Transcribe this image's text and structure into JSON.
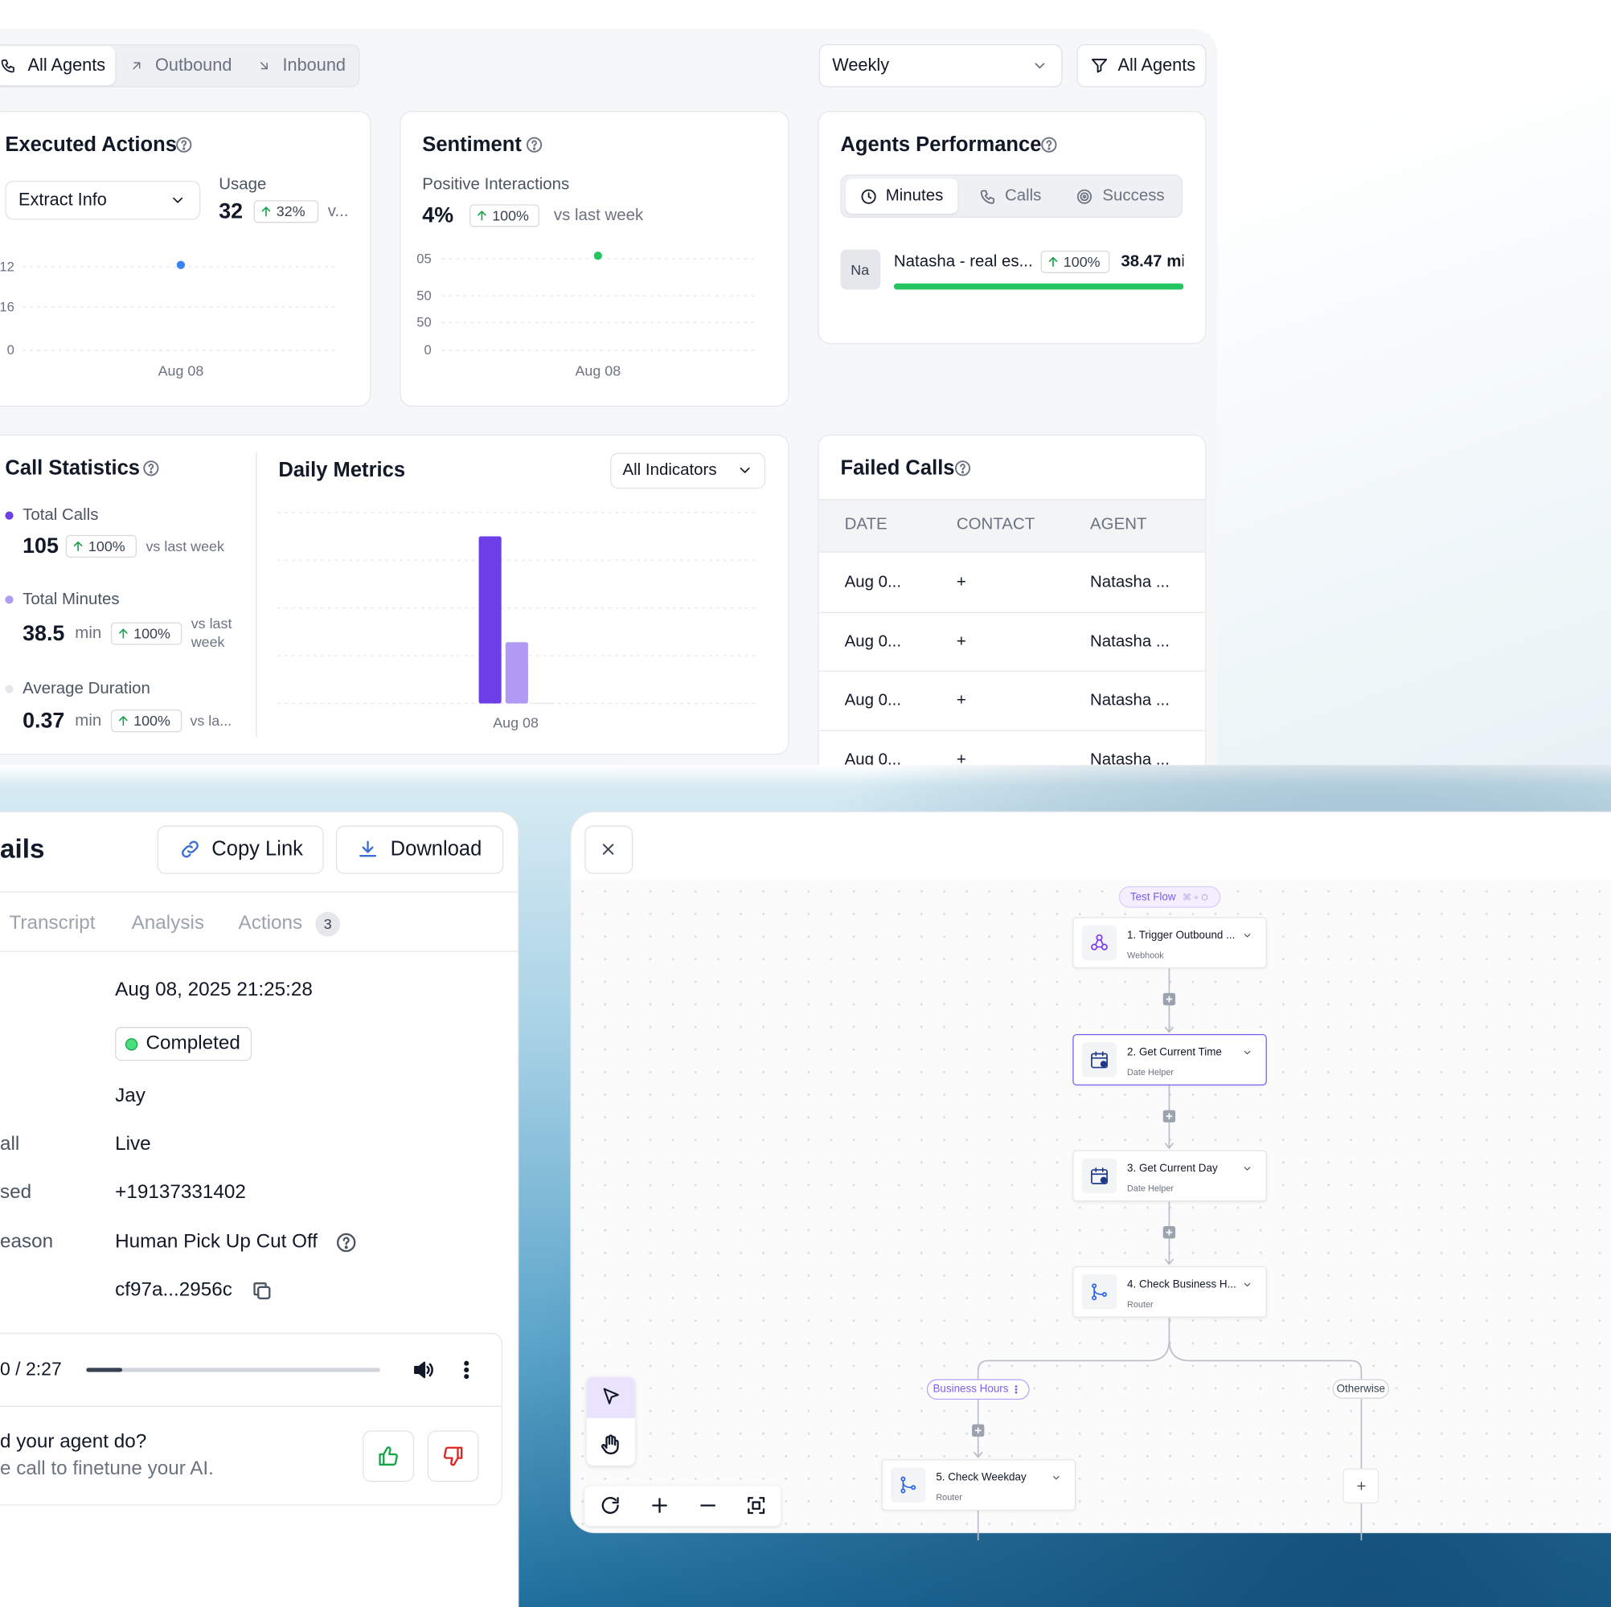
{
  "dashboard": {
    "tabs": [
      "All Agents",
      "Outbound",
      "Inbound"
    ],
    "period": "Weekly",
    "filter": "All Agents",
    "executed_actions": {
      "title": "Executed Actions",
      "select": "Extract Info",
      "usage_label": "Usage",
      "usage_value": 32,
      "change": "32%",
      "compare": "v...",
      "y_labels": [
        "12",
        "16",
        "0"
      ],
      "x_label": "Aug 08",
      "dot_color": "#3b82f6"
    },
    "sentiment": {
      "title": "Sentiment",
      "subtitle": "Positive Interactions",
      "value": "4%",
      "change": "100%",
      "compare": "vs last week",
      "y_labels": [
        "05",
        "50",
        "50",
        "0"
      ],
      "x_label": "Aug 08",
      "dot_color": "#22c55e"
    },
    "agents_performance": {
      "title": "Agents Performance",
      "tabs": [
        "Minutes",
        "Calls",
        "Success"
      ],
      "agent_initials": "Na",
      "agent_name": "Natasha - real es...",
      "agent_change": "100%",
      "agent_value": "38.47 mi",
      "bar_color": "#22c55e"
    },
    "call_statistics": {
      "title": "Call Statistics",
      "items": [
        {
          "label": "Total Calls",
          "value": 105,
          "change": "100%",
          "compare": "vs last week",
          "color": "#6d3fe8"
        },
        {
          "label": "Total Minutes",
          "value": 38.5,
          "unit": "min",
          "change": "100%",
          "compare": "vs last week",
          "color": "#b09af4"
        },
        {
          "label": "Average Duration",
          "value": 0.37,
          "unit": "min",
          "change": "100%",
          "compare": "vs la...",
          "color": "#e5e7eb"
        }
      ]
    },
    "daily_metrics": {
      "title": "Daily Metrics",
      "select": "All Indicators",
      "x_label": "Aug 08",
      "ylim": [
        0,
        120
      ],
      "grid": true
    },
    "failed_calls": {
      "title": "Failed Calls",
      "columns": [
        "DATE",
        "CONTACT",
        "AGENT"
      ],
      "rows": [
        [
          "Aug 0...",
          "+",
          "Natasha ..."
        ],
        [
          "Aug 0...",
          "+",
          "Natasha ..."
        ],
        [
          "Aug 0...",
          "+",
          "Natasha ..."
        ],
        [
          "Aug 0...",
          "+",
          "Natasha ..."
        ]
      ]
    }
  },
  "call_details": {
    "title": "ails",
    "copy_link": "Copy Link",
    "download": "Download",
    "tabs": [
      "Transcript",
      "Analysis",
      "Actions"
    ],
    "actions_count": 3,
    "fields": [
      {
        "value": "Aug 08, 2025 21:25:28"
      },
      {
        "value": "Completed"
      },
      {
        "value": "Jay"
      },
      {
        "label": "all",
        "value": "Live"
      },
      {
        "label": "sed",
        "value": "+19137331402"
      },
      {
        "label": "eason",
        "value": "Human Pick Up Cut Off"
      },
      {
        "value": "cf97a...2956c"
      }
    ],
    "audio_time": "0 / 2:27",
    "feedback_question": "d your agent do?",
    "feedback_hint": "e call to finetune your AI."
  },
  "workflow": {
    "badge": "Test Flow",
    "badge_shortcut": "⌘ + O",
    "nodes": [
      {
        "title": "1. Trigger Outbound ...",
        "subtitle": "Webhook"
      },
      {
        "title": "2. Get Current Time",
        "subtitle": "Date Helper"
      },
      {
        "title": "3. Get Current Day",
        "subtitle": "Date Helper"
      },
      {
        "title": "4. Check Business H...",
        "subtitle": "Router"
      },
      {
        "title": "5. Check Weekday",
        "subtitle": "Router"
      }
    ],
    "branches": [
      "Business Hours",
      "Otherwise"
    ]
  }
}
